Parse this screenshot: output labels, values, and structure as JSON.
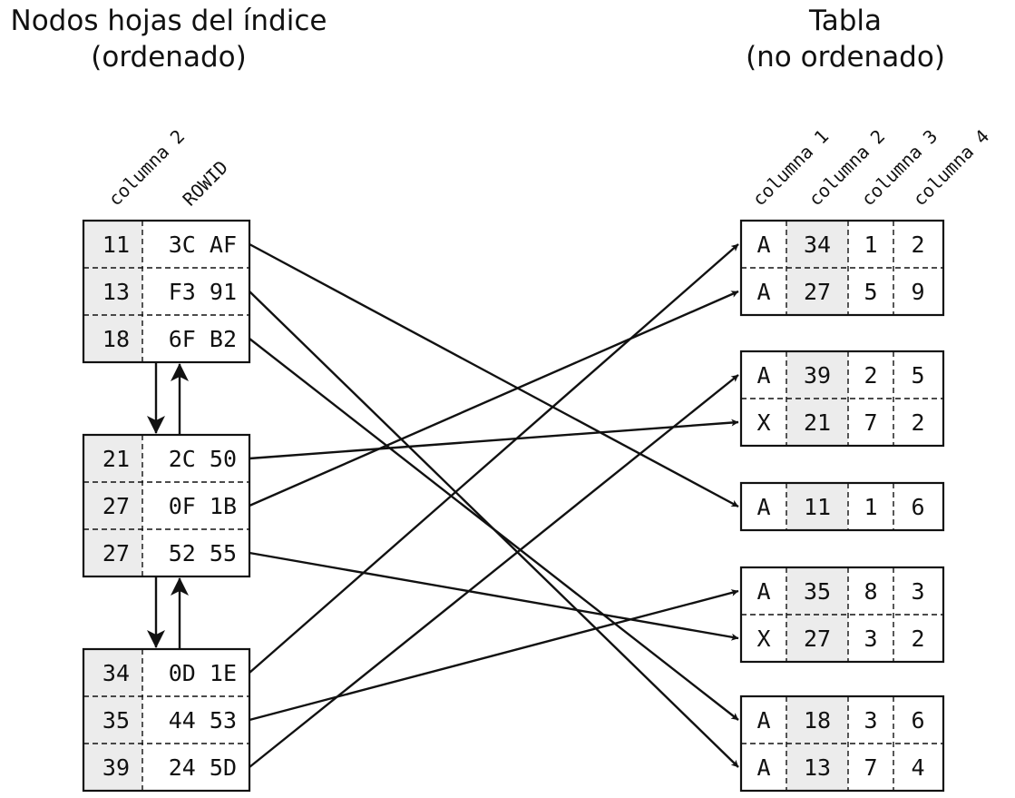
{
  "left_title": [
    "Nodos hojas del índice",
    "(ordenado)"
  ],
  "right_title": [
    "Tabla",
    "(no ordenado)"
  ],
  "index_headers": [
    "columna 2",
    "ROWID"
  ],
  "table_headers": [
    "columna 1",
    "columna 2",
    "columna 3",
    "columna 4"
  ],
  "index_nodes": [
    [
      [
        "11",
        "3C AF"
      ],
      [
        "13",
        "F3 91"
      ],
      [
        "18",
        "6F B2"
      ]
    ],
    [
      [
        "21",
        "2C 50"
      ],
      [
        "27",
        "0F 1B"
      ],
      [
        "27",
        "52 55"
      ]
    ],
    [
      [
        "34",
        "0D 1E"
      ],
      [
        "35",
        "44 53"
      ],
      [
        "39",
        "24 5D"
      ]
    ]
  ],
  "table_blocks": [
    [
      [
        "A",
        "34",
        "1",
        "2"
      ],
      [
        "A",
        "27",
        "5",
        "9"
      ]
    ],
    [
      [
        "A",
        "39",
        "2",
        "5"
      ],
      [
        "X",
        "21",
        "7",
        "2"
      ]
    ],
    [
      [
        "A",
        "11",
        "1",
        "6"
      ]
    ],
    [
      [
        "A",
        "35",
        "8",
        "3"
      ],
      [
        "X",
        "27",
        "3",
        "2"
      ]
    ],
    [
      [
        "A",
        "18",
        "3",
        "6"
      ],
      [
        "A",
        "13",
        "7",
        "4"
      ]
    ]
  ],
  "links": [
    {
      "from": [
        0,
        0
      ],
      "to": [
        2,
        0
      ]
    },
    {
      "from": [
        0,
        1
      ],
      "to": [
        4,
        1
      ]
    },
    {
      "from": [
        0,
        2
      ],
      "to": [
        4,
        0
      ]
    },
    {
      "from": [
        1,
        0
      ],
      "to": [
        1,
        1
      ]
    },
    {
      "from": [
        1,
        1
      ],
      "to": [
        0,
        1
      ]
    },
    {
      "from": [
        1,
        2
      ],
      "to": [
        3,
        1
      ]
    },
    {
      "from": [
        2,
        0
      ],
      "to": [
        0,
        0
      ]
    },
    {
      "from": [
        2,
        1
      ],
      "to": [
        3,
        0
      ]
    },
    {
      "from": [
        2,
        2
      ],
      "to": [
        1,
        0
      ]
    }
  ]
}
